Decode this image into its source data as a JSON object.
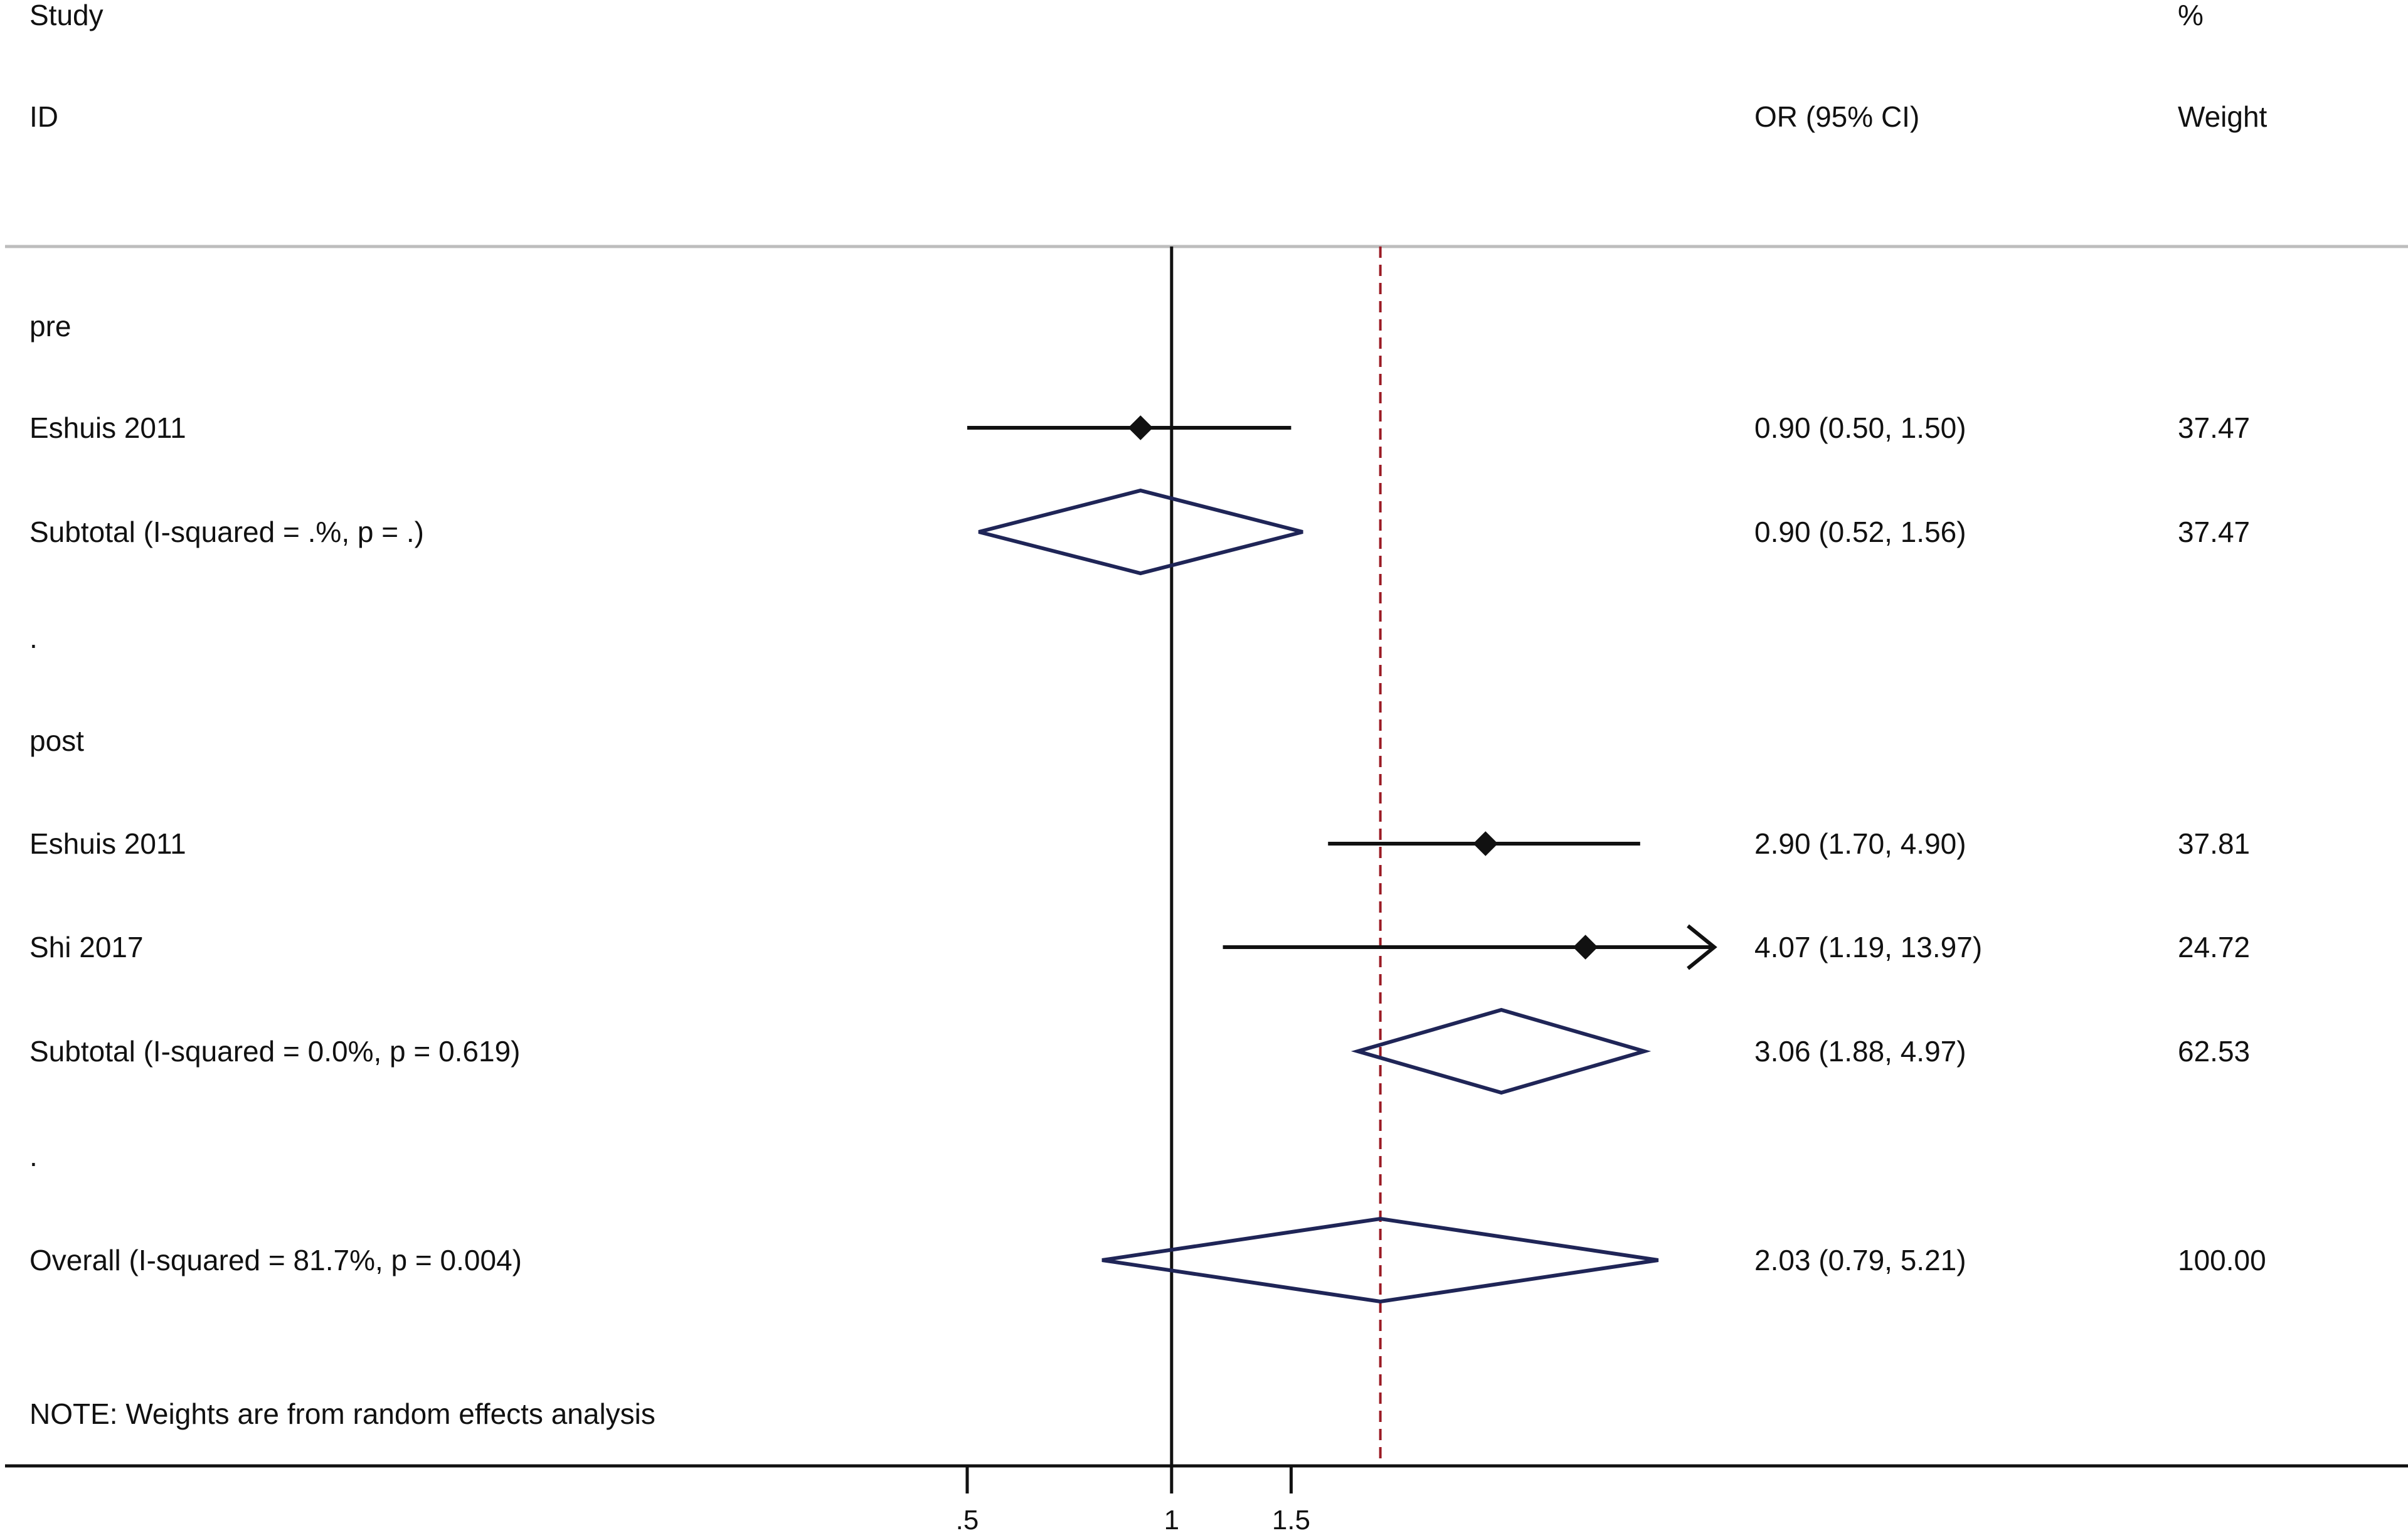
{
  "chart_data": {
    "type": "forest",
    "headers": {
      "study_line1": "Study",
      "study_line2": "ID",
      "estimate": "OR (95% CI)",
      "weight_line1": "%",
      "weight_line2": "Weight"
    },
    "rows": [
      {
        "kind": "group",
        "label": "pre"
      },
      {
        "kind": "study",
        "label": "Eshuis 2011",
        "or": 0.9,
        "ci_low": 0.5,
        "ci_high": 1.5,
        "ci_text": "0.90 (0.50, 1.50)",
        "weight": "37.47"
      },
      {
        "kind": "subtotal",
        "label": "Subtotal  (I-squared = .%, p = .)",
        "or": 0.9,
        "ci_low": 0.52,
        "ci_high": 1.56,
        "ci_text": "0.90 (0.52, 1.56)",
        "weight": "37.47"
      },
      {
        "kind": "spacer",
        "label": "."
      },
      {
        "kind": "group",
        "label": "post"
      },
      {
        "kind": "study",
        "label": "Eshuis 2011",
        "or": 2.9,
        "ci_low": 1.7,
        "ci_high": 4.9,
        "ci_text": "2.90 (1.70, 4.90)",
        "weight": "37.81"
      },
      {
        "kind": "study",
        "label": "Shi 2017",
        "or": 4.07,
        "ci_low": 1.19,
        "ci_high": 13.97,
        "ci_text": "4.07 (1.19, 13.97)",
        "weight": "24.72",
        "arrow_right": true
      },
      {
        "kind": "subtotal",
        "label": "Subtotal  (I-squared = 0.0%, p = 0.619)",
        "or": 3.06,
        "ci_low": 1.88,
        "ci_high": 4.97,
        "ci_text": "3.06 (1.88, 4.97)",
        "weight": "62.53"
      },
      {
        "kind": "spacer",
        "label": "."
      },
      {
        "kind": "overall",
        "label": "Overall  (I-squared = 81.7%, p = 0.004)",
        "or": 2.03,
        "ci_low": 0.79,
        "ci_high": 5.21,
        "ci_text": "2.03 (0.79, 5.21)",
        "weight": "100.00"
      }
    ],
    "note": "NOTE: Weights are from random effects analysis",
    "x_axis": {
      "scale": "log",
      "ticks": [
        0.5,
        1,
        1.5
      ],
      "tick_labels": [
        ".5",
        "1",
        "1.5"
      ],
      "view_range": [
        0.5,
        6.3
      ]
    },
    "null_line": 1,
    "overall_line": 2.03,
    "colors": {
      "text": "#111111",
      "ci_line": "#111111",
      "diamond_outline": "#1f2557",
      "overall_dashed_line": "#9b1b25",
      "separator": "#bdbdbd"
    }
  }
}
